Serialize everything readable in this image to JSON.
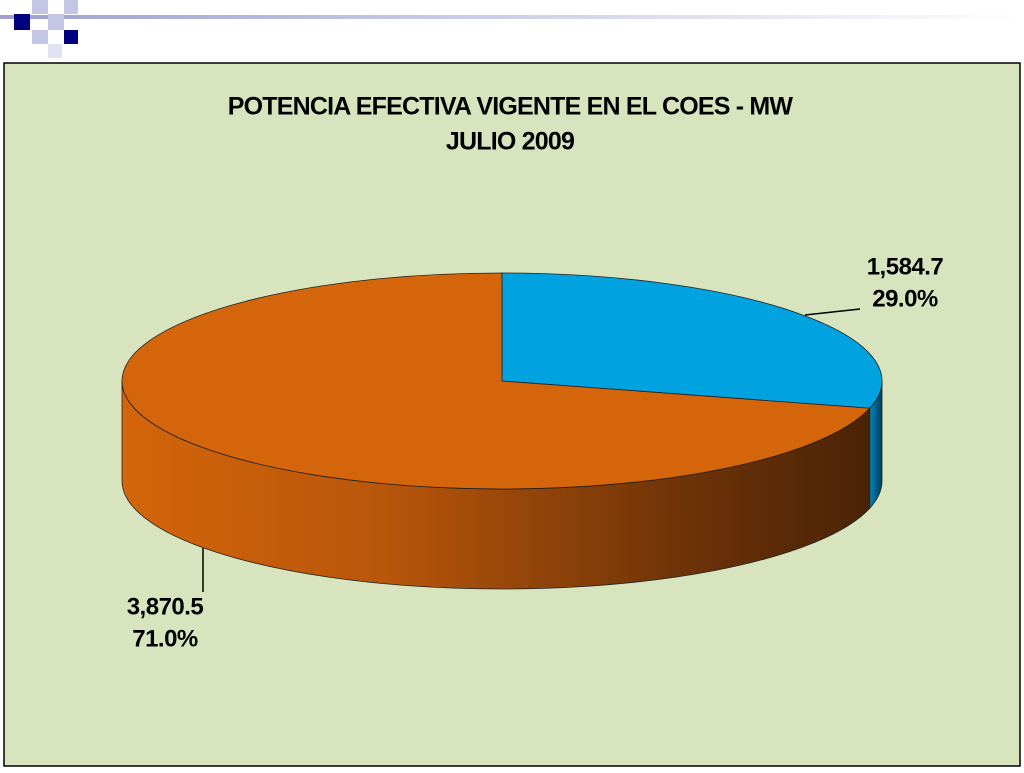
{
  "chart_data": {
    "type": "pie",
    "title": "POTENCIA EFECTIVA VIGENTE EN EL COES - MW",
    "subtitle": "JULIO 2009",
    "categories": [
      null,
      null
    ],
    "values": [
      1584.7,
      3870.5
    ],
    "value_labels": [
      "1,584.7",
      "3,870.5"
    ],
    "percents": [
      29.0,
      71.0
    ],
    "percent_labels": [
      "29.0%",
      "71.0%"
    ],
    "colors": [
      "#00a3e0",
      "#d4650a"
    ]
  }
}
